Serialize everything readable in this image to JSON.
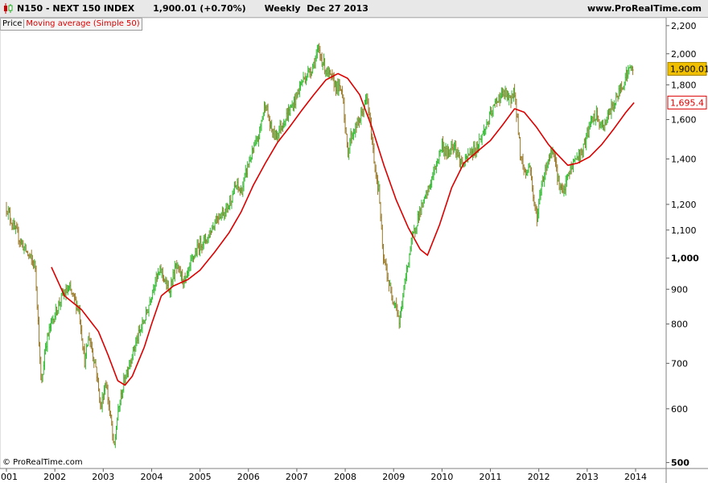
{
  "header": {
    "title": "N150 - NEXT 150 INDEX      1,900.01 (+0.70%)      Weekly  Dec 27 2013",
    "site": "www.ProRealTime.com"
  },
  "legend": {
    "price_label": "Price",
    "ma_label": "Moving average (Simple 50)"
  },
  "footer": {
    "copyright": "© ProRealTime.com"
  },
  "colors": {
    "up": "#33bb33",
    "down": "#9a7a2a",
    "ma": "#dd0000",
    "last_price_bg": "#f0c000",
    "ma_label_text": "#dd0000",
    "background": "#ffffff"
  },
  "chart_data": {
    "type": "line",
    "title": "N150 - NEXT 150 INDEX",
    "frequency": "Weekly",
    "date": "Dec 27 2013",
    "last_price": "1,900.01",
    "change": "+0.70%",
    "y_scale": "log",
    "ylim": [
      490,
      2260
    ],
    "y_ticks": [
      {
        "value": 2200,
        "label": "2,200",
        "bold": false
      },
      {
        "value": 2000,
        "label": "2,000",
        "bold": false
      },
      {
        "value": 1800,
        "label": "1,800",
        "bold": false
      },
      {
        "value": 1600,
        "label": "1,600",
        "bold": false
      },
      {
        "value": 1400,
        "label": "1,400",
        "bold": false
      },
      {
        "value": 1200,
        "label": "1,200",
        "bold": false
      },
      {
        "value": 1100,
        "label": "1,100",
        "bold": false
      },
      {
        "value": 1000,
        "label": "1,000",
        "bold": true
      },
      {
        "value": 900,
        "label": "900",
        "bold": false
      },
      {
        "value": 800,
        "label": "800",
        "bold": false
      },
      {
        "value": 700,
        "label": "700",
        "bold": false
      },
      {
        "value": 600,
        "label": "600",
        "bold": false
      },
      {
        "value": 500,
        "label": "500",
        "bold": true
      }
    ],
    "x_ticks": [
      "2001",
      "2002",
      "2003",
      "2004",
      "2005",
      "2006",
      "2007",
      "2008",
      "2009",
      "2010",
      "2011",
      "2012",
      "2013",
      "2014"
    ],
    "xlim": [
      2001.0,
      2014.0
    ],
    "price_series": {
      "name": "Price",
      "points": [
        [
          2001.0,
          1190
        ],
        [
          2001.15,
          1110
        ],
        [
          2001.35,
          1040
        ],
        [
          2001.6,
          970
        ],
        [
          2001.72,
          640
        ],
        [
          2001.8,
          740
        ],
        [
          2001.92,
          800
        ],
        [
          2002.15,
          880
        ],
        [
          2002.3,
          900
        ],
        [
          2002.5,
          840
        ],
        [
          2002.62,
          700
        ],
        [
          2002.7,
          770
        ],
        [
          2002.85,
          690
        ],
        [
          2002.95,
          600
        ],
        [
          2003.05,
          660
        ],
        [
          2003.18,
          560
        ],
        [
          2003.22,
          520
        ],
        [
          2003.3,
          590
        ],
        [
          2003.45,
          670
        ],
        [
          2003.7,
          760
        ],
        [
          2003.9,
          830
        ],
        [
          2004.05,
          920
        ],
        [
          2004.2,
          960
        ],
        [
          2004.35,
          890
        ],
        [
          2004.5,
          970
        ],
        [
          2004.7,
          920
        ],
        [
          2004.85,
          1000
        ],
        [
          2005.0,
          1050
        ],
        [
          2005.15,
          1070
        ],
        [
          2005.35,
          1150
        ],
        [
          2005.55,
          1180
        ],
        [
          2005.75,
          1280
        ],
        [
          2005.85,
          1250
        ],
        [
          2006.0,
          1380
        ],
        [
          2006.2,
          1500
        ],
        [
          2006.35,
          1700
        ],
        [
          2006.45,
          1560
        ],
        [
          2006.55,
          1510
        ],
        [
          2006.75,
          1600
        ],
        [
          2006.95,
          1700
        ],
        [
          2007.1,
          1820
        ],
        [
          2007.3,
          1900
        ],
        [
          2007.45,
          2020
        ],
        [
          2007.52,
          1960
        ],
        [
          2007.62,
          1880
        ],
        [
          2007.75,
          1820
        ],
        [
          2007.85,
          1780
        ],
        [
          2007.95,
          1760
        ],
        [
          2008.0,
          1550
        ],
        [
          2008.05,
          1420
        ],
        [
          2008.1,
          1500
        ],
        [
          2008.3,
          1600
        ],
        [
          2008.45,
          1720
        ],
        [
          2008.55,
          1500
        ],
        [
          2008.62,
          1350
        ],
        [
          2008.7,
          1250
        ],
        [
          2008.78,
          1000
        ],
        [
          2008.85,
          960
        ],
        [
          2008.95,
          880
        ],
        [
          2009.05,
          860
        ],
        [
          2009.12,
          800
        ],
        [
          2009.2,
          890
        ],
        [
          2009.35,
          1040
        ],
        [
          2009.5,
          1150
        ],
        [
          2009.65,
          1220
        ],
        [
          2009.85,
          1350
        ],
        [
          2010.0,
          1470
        ],
        [
          2010.1,
          1420
        ],
        [
          2010.25,
          1480
        ],
        [
          2010.35,
          1400
        ],
        [
          2010.45,
          1370
        ],
        [
          2010.55,
          1420
        ],
        [
          2010.7,
          1450
        ],
        [
          2010.85,
          1530
        ],
        [
          2011.0,
          1620
        ],
        [
          2011.15,
          1720
        ],
        [
          2011.3,
          1750
        ],
        [
          2011.4,
          1700
        ],
        [
          2011.48,
          1770
        ],
        [
          2011.55,
          1620
        ],
        [
          2011.62,
          1420
        ],
        [
          2011.72,
          1330
        ],
        [
          2011.82,
          1370
        ],
        [
          2011.9,
          1200
        ],
        [
          2011.97,
          1150
        ],
        [
          2012.05,
          1280
        ],
        [
          2012.2,
          1400
        ],
        [
          2012.3,
          1460
        ],
        [
          2012.4,
          1300
        ],
        [
          2012.5,
          1240
        ],
        [
          2012.6,
          1320
        ],
        [
          2012.75,
          1400
        ],
        [
          2012.9,
          1430
        ],
        [
          2013.0,
          1520
        ],
        [
          2013.1,
          1600
        ],
        [
          2013.2,
          1620
        ],
        [
          2013.3,
          1550
        ],
        [
          2013.4,
          1600
        ],
        [
          2013.5,
          1660
        ],
        [
          2013.6,
          1720
        ],
        [
          2013.72,
          1800
        ],
        [
          2013.8,
          1860
        ],
        [
          2013.88,
          1900
        ],
        [
          2013.95,
          1900
        ]
      ]
    },
    "ma_series": {
      "name": "Moving average (Simple 50)",
      "last_value": "1,695.4",
      "points": [
        [
          2001.93,
          970
        ],
        [
          2002.2,
          880
        ],
        [
          2002.55,
          840
        ],
        [
          2002.9,
          780
        ],
        [
          2003.1,
          720
        ],
        [
          2003.3,
          660
        ],
        [
          2003.45,
          650
        ],
        [
          2003.6,
          670
        ],
        [
          2003.85,
          740
        ],
        [
          2004.0,
          800
        ],
        [
          2004.2,
          880
        ],
        [
          2004.45,
          910
        ],
        [
          2004.75,
          930
        ],
        [
          2005.0,
          960
        ],
        [
          2005.3,
          1020
        ],
        [
          2005.6,
          1090
        ],
        [
          2005.85,
          1170
        ],
        [
          2006.1,
          1280
        ],
        [
          2006.35,
          1380
        ],
        [
          2006.6,
          1480
        ],
        [
          2006.85,
          1560
        ],
        [
          2007.1,
          1650
        ],
        [
          2007.35,
          1740
        ],
        [
          2007.6,
          1830
        ],
        [
          2007.85,
          1870
        ],
        [
          2008.05,
          1840
        ],
        [
          2008.3,
          1740
        ],
        [
          2008.55,
          1560
        ],
        [
          2008.8,
          1370
        ],
        [
          2009.05,
          1220
        ],
        [
          2009.3,
          1110
        ],
        [
          2009.55,
          1030
        ],
        [
          2009.7,
          1010
        ],
        [
          2009.95,
          1120
        ],
        [
          2010.2,
          1270
        ],
        [
          2010.45,
          1380
        ],
        [
          2010.75,
          1440
        ],
        [
          2011.0,
          1490
        ],
        [
          2011.25,
          1570
        ],
        [
          2011.5,
          1660
        ],
        [
          2011.7,
          1640
        ],
        [
          2011.95,
          1560
        ],
        [
          2012.2,
          1470
        ],
        [
          2012.35,
          1430
        ],
        [
          2012.6,
          1370
        ],
        [
          2012.8,
          1380
        ],
        [
          2013.05,
          1410
        ],
        [
          2013.3,
          1470
        ],
        [
          2013.55,
          1550
        ],
        [
          2013.8,
          1640
        ],
        [
          2013.97,
          1695
        ]
      ]
    }
  }
}
